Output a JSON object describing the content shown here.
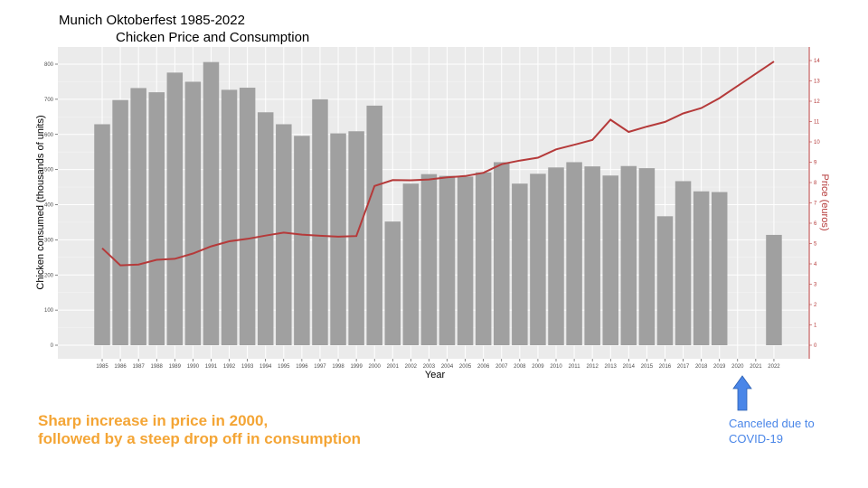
{
  "title_lines": [
    "Munich Oktoberfest 1985-2022",
    "Chicken Price and Consumption"
  ],
  "annotations": {
    "main_lines": [
      "Sharp increase in price in 2000,",
      "followed by a steep drop off in consumption"
    ],
    "covid_lines": [
      "Canceled due to",
      "COVID-19"
    ]
  },
  "colors": {
    "bar": "#a0a0a0",
    "price_line": "#b53a3a",
    "panel_bg": "#ebebeb",
    "grid": "#ffffff",
    "annotation_main": "#f4a535",
    "annotation_covid": "#4a86e8",
    "arrow": "#4a86e8"
  },
  "icons": {
    "arrow": "up-arrow-icon"
  },
  "chart_data": {
    "type": "bar",
    "title": "Munich Oktoberfest 1985-2022 Chicken Price and Consumption",
    "xlabel": "Year",
    "ylabel": "Chicken consumed (thousands of units)",
    "y2label": "Price (euros)",
    "categories": [
      "1985",
      "1986",
      "1987",
      "1988",
      "1989",
      "1990",
      "1991",
      "1992",
      "1993",
      "1994",
      "1995",
      "1996",
      "1997",
      "1998",
      "1999",
      "2000",
      "2001",
      "2002",
      "2003",
      "2004",
      "2005",
      "2006",
      "2007",
      "2008",
      "2009",
      "2010",
      "2011",
      "2012",
      "2013",
      "2014",
      "2015",
      "2016",
      "2017",
      "2018",
      "2019",
      "2020",
      "2021",
      "2022"
    ],
    "ylim": [
      0,
      800
    ],
    "yticks": [
      0,
      100,
      200,
      300,
      400,
      500,
      600,
      700,
      800
    ],
    "y2lim": [
      0,
      14
    ],
    "y2ticks": [
      0,
      1,
      2,
      3,
      4,
      5,
      6,
      7,
      8,
      9,
      10,
      11,
      12,
      13,
      14
    ],
    "grid": true,
    "series": [
      {
        "name": "Chicken consumed (thousands of units)",
        "type": "bar",
        "axis": "left",
        "values": [
          629,
          698,
          732,
          720,
          776,
          750,
          806,
          727,
          733,
          663,
          629,
          596,
          700,
          603,
          609,
          682,
          352,
          460,
          487,
          482,
          480,
          492,
          521,
          460,
          488,
          506,
          521,
          509,
          483,
          510,
          504,
          367,
          467,
          438,
          436,
          null,
          null,
          314
        ]
      },
      {
        "name": "Price (euros)",
        "type": "line",
        "axis": "right",
        "values": [
          4.77,
          3.93,
          3.97,
          4.2,
          4.25,
          4.51,
          4.86,
          5.11,
          5.23,
          5.39,
          5.54,
          5.44,
          5.38,
          5.34,
          5.37,
          7.83,
          8.12,
          8.11,
          8.15,
          8.26,
          8.32,
          8.48,
          8.9,
          9.08,
          9.22,
          9.63,
          9.86,
          10.1,
          11.09,
          10.49,
          10.75,
          10.98,
          11.4,
          11.66,
          12.15,
          12.75,
          13.35,
          13.95
        ]
      }
    ]
  }
}
